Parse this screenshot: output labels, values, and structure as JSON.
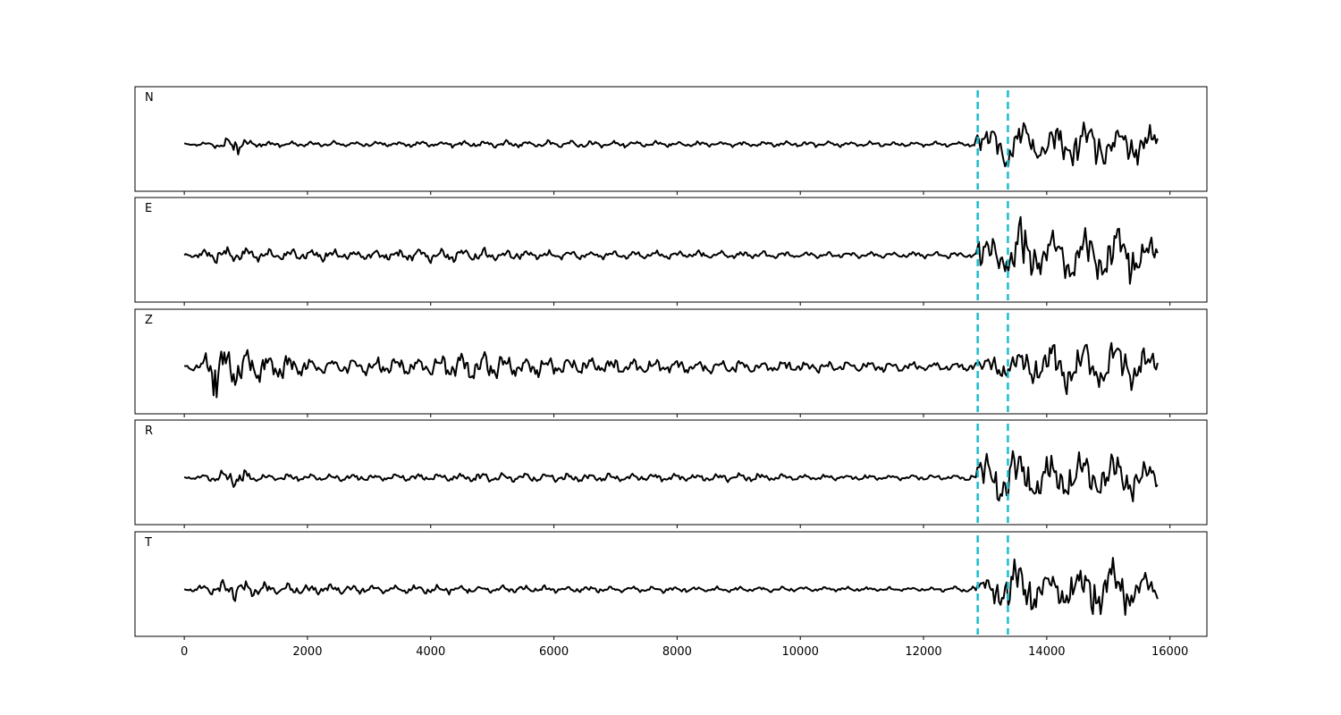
{
  "chart_data": {
    "type": "line",
    "title": "",
    "xlabel": "",
    "ylabel": "",
    "xlim": [
      -800,
      16600
    ],
    "x_ticks": [
      0,
      2000,
      4000,
      6000,
      8000,
      10000,
      12000,
      14000,
      16000
    ],
    "x_tick_labels": [
      "0",
      "2000",
      "4000",
      "6000",
      "8000",
      "10000",
      "12000",
      "14000",
      "16000"
    ],
    "samples": 15800,
    "trace_color": "#000000",
    "pick_color": "#17becf",
    "picks": [
      12880,
      13370
    ],
    "grid": false,
    "legend": "none",
    "panels": [
      {
        "label": "N",
        "ylim": [
          -1,
          1
        ],
        "envelope": [
          [
            0,
            0.03
          ],
          [
            400,
            0.05
          ],
          [
            600,
            0.12
          ],
          [
            800,
            0.28
          ],
          [
            1000,
            0.12
          ],
          [
            1400,
            0.06
          ],
          [
            4000,
            0.07
          ],
          [
            6000,
            0.09
          ],
          [
            8000,
            0.07
          ],
          [
            10000,
            0.07
          ],
          [
            12000,
            0.06
          ],
          [
            12800,
            0.07
          ],
          [
            12900,
            0.35
          ],
          [
            13100,
            0.45
          ],
          [
            13300,
            0.55
          ],
          [
            13370,
            1.0
          ],
          [
            13500,
            0.75
          ],
          [
            13800,
            0.45
          ],
          [
            14300,
            0.5
          ],
          [
            14800,
            0.6
          ],
          [
            15300,
            0.45
          ],
          [
            15800,
            0.4
          ]
        ]
      },
      {
        "label": "E",
        "ylim": [
          -1,
          1
        ],
        "envelope": [
          [
            0,
            0.03
          ],
          [
            400,
            0.15
          ],
          [
            500,
            0.25
          ],
          [
            800,
            0.22
          ],
          [
            1200,
            0.15
          ],
          [
            3000,
            0.12
          ],
          [
            4700,
            0.18
          ],
          [
            6000,
            0.1
          ],
          [
            8000,
            0.1
          ],
          [
            10000,
            0.08
          ],
          [
            12000,
            0.07
          ],
          [
            12850,
            0.08
          ],
          [
            12900,
            0.4
          ],
          [
            13100,
            0.45
          ],
          [
            13400,
            0.5
          ],
          [
            13570,
            1.0
          ],
          [
            13800,
            0.55
          ],
          [
            14300,
            0.65
          ],
          [
            14900,
            0.7
          ],
          [
            15200,
            0.8
          ],
          [
            15800,
            0.3
          ]
        ]
      },
      {
        "label": "Z",
        "ylim": [
          -1,
          1
        ],
        "envelope": [
          [
            0,
            0.08
          ],
          [
            300,
            0.12
          ],
          [
            480,
            1.0
          ],
          [
            600,
            0.5
          ],
          [
            760,
            0.7
          ],
          [
            900,
            0.45
          ],
          [
            1200,
            0.4
          ],
          [
            2000,
            0.22
          ],
          [
            4000,
            0.25
          ],
          [
            4700,
            0.4
          ],
          [
            6000,
            0.22
          ],
          [
            8000,
            0.18
          ],
          [
            10000,
            0.15
          ],
          [
            12000,
            0.13
          ],
          [
            12900,
            0.12
          ],
          [
            13350,
            0.4
          ],
          [
            14000,
            0.6
          ],
          [
            14900,
            0.7
          ],
          [
            15300,
            0.8
          ],
          [
            15800,
            0.3
          ]
        ]
      },
      {
        "label": "R",
        "ylim": [
          -1,
          1
        ],
        "envelope": [
          [
            0,
            0.03
          ],
          [
            400,
            0.08
          ],
          [
            500,
            0.15
          ],
          [
            800,
            0.3
          ],
          [
            1200,
            0.1
          ],
          [
            3000,
            0.08
          ],
          [
            6000,
            0.12
          ],
          [
            8000,
            0.09
          ],
          [
            9000,
            0.12
          ],
          [
            10000,
            0.07
          ],
          [
            12000,
            0.06
          ],
          [
            12850,
            0.08
          ],
          [
            12900,
            0.55
          ],
          [
            13100,
            0.6
          ],
          [
            13370,
            1.0
          ],
          [
            13600,
            0.7
          ],
          [
            14000,
            0.55
          ],
          [
            14600,
            0.7
          ],
          [
            15200,
            0.6
          ],
          [
            15800,
            0.3
          ]
        ]
      },
      {
        "label": "T",
        "ylim": [
          -1,
          1
        ],
        "envelope": [
          [
            0,
            0.03
          ],
          [
            500,
            0.15
          ],
          [
            800,
            0.35
          ],
          [
            1200,
            0.15
          ],
          [
            3000,
            0.12
          ],
          [
            6000,
            0.08
          ],
          [
            8000,
            0.07
          ],
          [
            10000,
            0.06
          ],
          [
            12000,
            0.05
          ],
          [
            12800,
            0.08
          ],
          [
            12900,
            0.18
          ],
          [
            13150,
            0.45
          ],
          [
            13300,
            0.6
          ],
          [
            13450,
            0.9
          ],
          [
            13600,
            0.8
          ],
          [
            14000,
            0.45
          ],
          [
            14600,
            0.6
          ],
          [
            15100,
            0.85
          ],
          [
            15500,
            0.45
          ],
          [
            15800,
            0.25
          ]
        ]
      }
    ]
  }
}
